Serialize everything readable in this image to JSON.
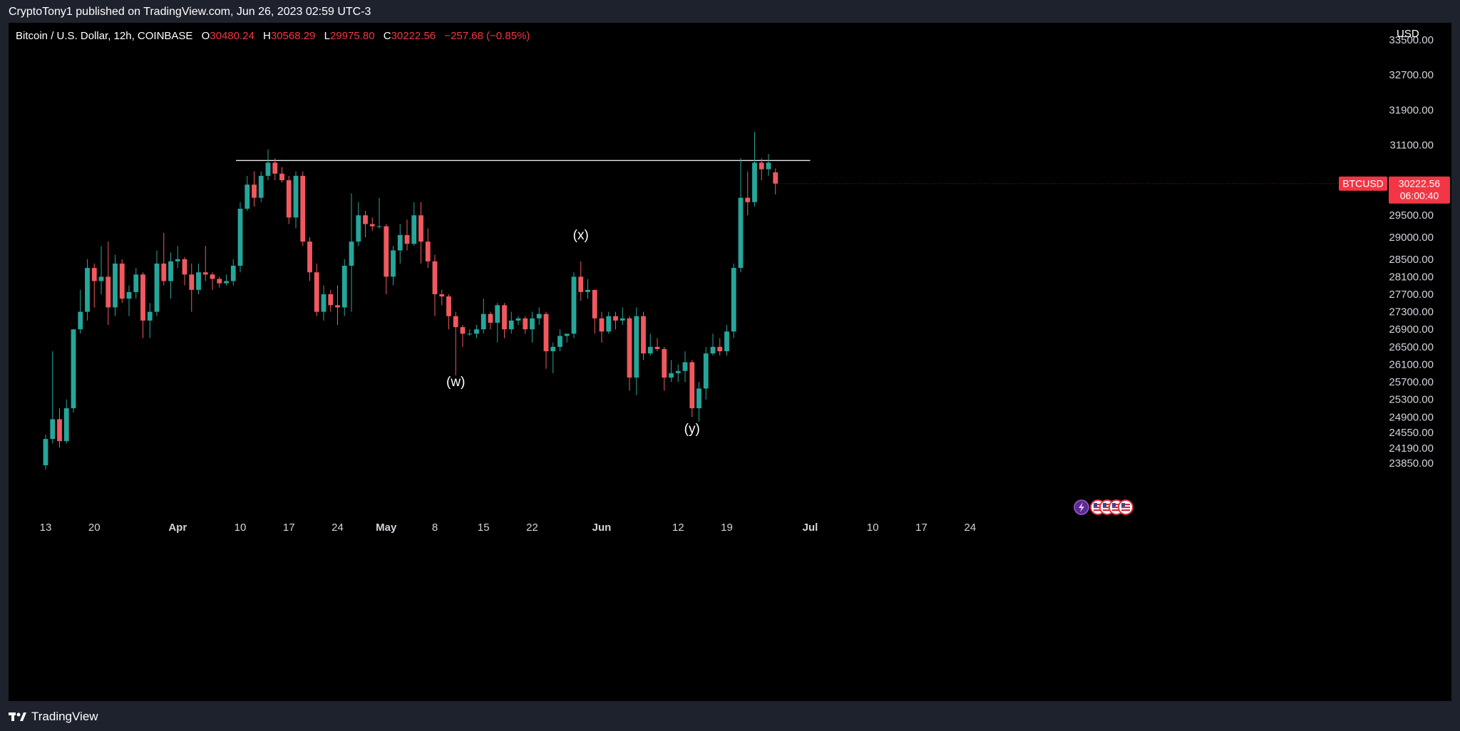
{
  "header": {
    "publish_text": "CryptoTony1 published on TradingView.com, Jun 26, 2023 02:59 UTC-3"
  },
  "legend": {
    "symbol": "Bitcoin / U.S. Dollar, 12h, COINBASE",
    "open_label": "O",
    "open": "30480.24",
    "high_label": "H",
    "high": "30568.29",
    "low_label": "L",
    "low": "29975.80",
    "close_label": "C",
    "close": "30222.56",
    "change": "−257.68 (−0.85%)"
  },
  "price_axis": {
    "currency": "USD"
  },
  "price_badge": {
    "ticker": "BTCUSD",
    "price": "30222.56",
    "countdown": "06:00:40"
  },
  "footer": {
    "brand": "TradingView"
  },
  "colors": {
    "up": "#26a69a",
    "down": "#f0595f",
    "background": "#000000",
    "axis_text": "#d1d4dc",
    "badge": "#f23645"
  },
  "chart_data": {
    "type": "candlestick",
    "title": "",
    "y_tick_labels": [
      33500,
      32700,
      31900,
      31100,
      29500,
      29000,
      28500,
      28100,
      27700,
      27300,
      26900,
      26500,
      26100,
      25700,
      25300,
      24900,
      24550,
      24190,
      23850
    ],
    "x_tick_labels": [
      {
        "date": "2023-03-13",
        "label": "13"
      },
      {
        "date": "2023-03-20",
        "label": "20"
      },
      {
        "date": "2023-04-01",
        "label": "Apr"
      },
      {
        "date": "2023-04-10",
        "label": "10"
      },
      {
        "date": "2023-04-17",
        "label": "17"
      },
      {
        "date": "2023-04-24",
        "label": "24"
      },
      {
        "date": "2023-05-01",
        "label": "May"
      },
      {
        "date": "2023-05-08",
        "label": "8"
      },
      {
        "date": "2023-05-15",
        "label": "15"
      },
      {
        "date": "2023-05-22",
        "label": "22"
      },
      {
        "date": "2023-06-01",
        "label": "Jun"
      },
      {
        "date": "2023-06-12",
        "label": "12"
      },
      {
        "date": "2023-06-19",
        "label": "19"
      },
      {
        "date": "2023-07-01",
        "label": "Jul"
      },
      {
        "date": "2023-07-10",
        "label": "10"
      },
      {
        "date": "2023-07-17",
        "label": "17"
      },
      {
        "date": "2023-07-24",
        "label": "24"
      }
    ],
    "horizontal_line": {
      "price": 30750,
      "from": "2023-04-10",
      "to": "2023-07-01"
    },
    "annotations": [
      {
        "text": "(w)",
        "date": "2023-05-11",
        "price": 25600
      },
      {
        "text": "(x)",
        "date": "2023-05-29",
        "price": 28950
      },
      {
        "text": "(y)",
        "date": "2023-06-14",
        "price": 24530
      }
    ],
    "series": [
      {
        "date": "2023-03-13",
        "o": 23800,
        "h": 24500,
        "l": 23700,
        "c": 24400
      },
      {
        "date": "2023-03-14",
        "o": 24400,
        "h": 26400,
        "l": 24300,
        "c": 24850
      },
      {
        "date": "2023-03-15",
        "o": 24850,
        "h": 25100,
        "l": 24200,
        "c": 24350
      },
      {
        "date": "2023-03-16",
        "o": 24350,
        "h": 25300,
        "l": 24300,
        "c": 25100
      },
      {
        "date": "2023-03-17",
        "o": 25100,
        "h": 26900,
        "l": 25000,
        "c": 26900
      },
      {
        "date": "2023-03-18",
        "o": 26900,
        "h": 27800,
        "l": 26800,
        "c": 27300
      },
      {
        "date": "2023-03-19",
        "o": 27300,
        "h": 28500,
        "l": 27100,
        "c": 28300
      },
      {
        "date": "2023-03-20",
        "o": 28300,
        "h": 28400,
        "l": 27400,
        "c": 28000
      },
      {
        "date": "2023-03-21",
        "o": 28000,
        "h": 28800,
        "l": 27700,
        "c": 28100
      },
      {
        "date": "2023-03-22",
        "o": 28100,
        "h": 28900,
        "l": 27000,
        "c": 27400
      },
      {
        "date": "2023-03-23",
        "o": 27400,
        "h": 28600,
        "l": 27200,
        "c": 28400
      },
      {
        "date": "2023-03-24",
        "o": 28400,
        "h": 28500,
        "l": 27500,
        "c": 27600
      },
      {
        "date": "2023-03-25",
        "o": 27600,
        "h": 27900,
        "l": 27200,
        "c": 27750
      },
      {
        "date": "2023-03-26",
        "o": 27750,
        "h": 28300,
        "l": 27600,
        "c": 28150
      },
      {
        "date": "2023-03-27",
        "o": 28150,
        "h": 28200,
        "l": 26700,
        "c": 27100
      },
      {
        "date": "2023-03-28",
        "o": 27100,
        "h": 27500,
        "l": 26700,
        "c": 27300
      },
      {
        "date": "2023-03-29",
        "o": 27300,
        "h": 28700,
        "l": 27200,
        "c": 28400
      },
      {
        "date": "2023-03-30",
        "o": 28400,
        "h": 29100,
        "l": 27900,
        "c": 28000
      },
      {
        "date": "2023-03-31",
        "o": 28000,
        "h": 28650,
        "l": 27600,
        "c": 28450
      },
      {
        "date": "2023-04-01",
        "o": 28450,
        "h": 28800,
        "l": 28300,
        "c": 28500
      },
      {
        "date": "2023-04-02",
        "o": 28500,
        "h": 28550,
        "l": 27900,
        "c": 28150
      },
      {
        "date": "2023-04-03",
        "o": 28150,
        "h": 28400,
        "l": 27300,
        "c": 27800
      },
      {
        "date": "2023-04-04",
        "o": 27800,
        "h": 28400,
        "l": 27700,
        "c": 28200
      },
      {
        "date": "2023-04-05",
        "o": 28200,
        "h": 28800,
        "l": 28000,
        "c": 28150
      },
      {
        "date": "2023-04-06",
        "o": 28150,
        "h": 28200,
        "l": 27800,
        "c": 28050
      },
      {
        "date": "2023-04-07",
        "o": 28050,
        "h": 28100,
        "l": 27850,
        "c": 27950
      },
      {
        "date": "2023-04-08",
        "o": 27950,
        "h": 28150,
        "l": 27900,
        "c": 28000
      },
      {
        "date": "2023-04-09",
        "o": 28000,
        "h": 28500,
        "l": 27900,
        "c": 28350
      },
      {
        "date": "2023-04-10",
        "o": 28350,
        "h": 29800,
        "l": 28200,
        "c": 29650
      },
      {
        "date": "2023-04-11",
        "o": 29650,
        "h": 30400,
        "l": 29600,
        "c": 30200
      },
      {
        "date": "2023-04-12",
        "o": 30200,
        "h": 30500,
        "l": 29700,
        "c": 29900
      },
      {
        "date": "2023-04-13",
        "o": 29900,
        "h": 30500,
        "l": 29800,
        "c": 30400
      },
      {
        "date": "2023-04-14",
        "o": 30400,
        "h": 31000,
        "l": 30300,
        "c": 30700
      },
      {
        "date": "2023-04-15",
        "o": 30700,
        "h": 30800,
        "l": 30300,
        "c": 30450
      },
      {
        "date": "2023-04-16",
        "o": 30450,
        "h": 30600,
        "l": 30250,
        "c": 30300
      },
      {
        "date": "2023-04-17",
        "o": 30300,
        "h": 30400,
        "l": 29300,
        "c": 29450
      },
      {
        "date": "2023-04-18",
        "o": 29450,
        "h": 30500,
        "l": 29200,
        "c": 30400
      },
      {
        "date": "2023-04-19",
        "o": 30400,
        "h": 30500,
        "l": 28800,
        "c": 28900
      },
      {
        "date": "2023-04-20",
        "o": 28900,
        "h": 29000,
        "l": 28000,
        "c": 28200
      },
      {
        "date": "2023-04-21",
        "o": 28200,
        "h": 28400,
        "l": 27200,
        "c": 27300
      },
      {
        "date": "2023-04-22",
        "o": 27300,
        "h": 27900,
        "l": 27100,
        "c": 27700
      },
      {
        "date": "2023-04-23",
        "o": 27700,
        "h": 27800,
        "l": 27300,
        "c": 27450
      },
      {
        "date": "2023-04-24",
        "o": 27450,
        "h": 27900,
        "l": 27000,
        "c": 27400
      },
      {
        "date": "2023-04-25",
        "o": 27400,
        "h": 28500,
        "l": 27200,
        "c": 28350
      },
      {
        "date": "2023-04-26",
        "o": 28350,
        "h": 30000,
        "l": 27300,
        "c": 28900
      },
      {
        "date": "2023-04-27",
        "o": 28900,
        "h": 29800,
        "l": 28800,
        "c": 29500
      },
      {
        "date": "2023-04-28",
        "o": 29500,
        "h": 29600,
        "l": 29000,
        "c": 29300
      },
      {
        "date": "2023-04-29",
        "o": 29300,
        "h": 29450,
        "l": 29150,
        "c": 29250
      },
      {
        "date": "2023-04-30",
        "o": 29250,
        "h": 29900,
        "l": 29200,
        "c": 29250
      },
      {
        "date": "2023-05-01",
        "o": 29250,
        "h": 29300,
        "l": 27700,
        "c": 28100
      },
      {
        "date": "2023-05-02",
        "o": 28100,
        "h": 28800,
        "l": 27900,
        "c": 28700
      },
      {
        "date": "2023-05-03",
        "o": 28700,
        "h": 29300,
        "l": 28400,
        "c": 29050
      },
      {
        "date": "2023-05-04",
        "o": 29050,
        "h": 29400,
        "l": 28700,
        "c": 28850
      },
      {
        "date": "2023-05-05",
        "o": 28850,
        "h": 29800,
        "l": 28800,
        "c": 29500
      },
      {
        "date": "2023-05-06",
        "o": 29500,
        "h": 29800,
        "l": 28400,
        "c": 28900
      },
      {
        "date": "2023-05-07",
        "o": 28900,
        "h": 29200,
        "l": 28300,
        "c": 28450
      },
      {
        "date": "2023-05-08",
        "o": 28450,
        "h": 28600,
        "l": 27200,
        "c": 27700
      },
      {
        "date": "2023-05-09",
        "o": 27700,
        "h": 27800,
        "l": 27450,
        "c": 27650
      },
      {
        "date": "2023-05-10",
        "o": 27650,
        "h": 27700,
        "l": 26900,
        "c": 27200
      },
      {
        "date": "2023-05-11",
        "o": 27200,
        "h": 27300,
        "l": 25850,
        "c": 26950
      },
      {
        "date": "2023-05-12",
        "o": 26950,
        "h": 27000,
        "l": 26500,
        "c": 26800
      },
      {
        "date": "2023-05-13",
        "o": 26800,
        "h": 26900,
        "l": 26750,
        "c": 26800
      },
      {
        "date": "2023-05-14",
        "o": 26800,
        "h": 27000,
        "l": 26700,
        "c": 26900
      },
      {
        "date": "2023-05-15",
        "o": 26900,
        "h": 27600,
        "l": 26800,
        "c": 27250
      },
      {
        "date": "2023-05-16",
        "o": 27250,
        "h": 27300,
        "l": 26900,
        "c": 27050
      },
      {
        "date": "2023-05-17",
        "o": 27050,
        "h": 27500,
        "l": 26600,
        "c": 27450
      },
      {
        "date": "2023-05-18",
        "o": 27450,
        "h": 27500,
        "l": 26700,
        "c": 26900
      },
      {
        "date": "2023-05-19",
        "o": 26900,
        "h": 27300,
        "l": 26800,
        "c": 27100
      },
      {
        "date": "2023-05-20",
        "o": 27100,
        "h": 27200,
        "l": 27000,
        "c": 27150
      },
      {
        "date": "2023-05-21",
        "o": 27150,
        "h": 27200,
        "l": 26800,
        "c": 26900
      },
      {
        "date": "2023-05-22",
        "o": 26900,
        "h": 27300,
        "l": 26600,
        "c": 27150
      },
      {
        "date": "2023-05-23",
        "o": 27150,
        "h": 27400,
        "l": 27000,
        "c": 27250
      },
      {
        "date": "2023-05-24",
        "o": 27250,
        "h": 27300,
        "l": 26000,
        "c": 26400
      },
      {
        "date": "2023-05-25",
        "o": 26400,
        "h": 26600,
        "l": 25900,
        "c": 26500
      },
      {
        "date": "2023-05-26",
        "o": 26500,
        "h": 26900,
        "l": 26400,
        "c": 26750
      },
      {
        "date": "2023-05-27",
        "o": 26750,
        "h": 26800,
        "l": 26600,
        "c": 26800
      },
      {
        "date": "2023-05-28",
        "o": 26800,
        "h": 28200,
        "l": 26700,
        "c": 28100
      },
      {
        "date": "2023-05-29",
        "o": 28100,
        "h": 28450,
        "l": 27550,
        "c": 27750
      },
      {
        "date": "2023-05-30",
        "o": 27750,
        "h": 28050,
        "l": 27600,
        "c": 27800
      },
      {
        "date": "2023-05-31",
        "o": 27800,
        "h": 27800,
        "l": 26800,
        "c": 27150
      },
      {
        "date": "2023-06-01",
        "o": 27150,
        "h": 27300,
        "l": 26600,
        "c": 26850
      },
      {
        "date": "2023-06-02",
        "o": 26850,
        "h": 27300,
        "l": 26800,
        "c": 27200
      },
      {
        "date": "2023-06-03",
        "o": 27200,
        "h": 27300,
        "l": 26900,
        "c": 27100
      },
      {
        "date": "2023-06-04",
        "o": 27100,
        "h": 27400,
        "l": 27000,
        "c": 27150
      },
      {
        "date": "2023-06-05",
        "o": 27150,
        "h": 27200,
        "l": 25500,
        "c": 25800
      },
      {
        "date": "2023-06-06",
        "o": 25800,
        "h": 27400,
        "l": 25400,
        "c": 27200
      },
      {
        "date": "2023-06-07",
        "o": 27200,
        "h": 27300,
        "l": 26200,
        "c": 26350
      },
      {
        "date": "2023-06-08",
        "o": 26350,
        "h": 26800,
        "l": 26300,
        "c": 26500
      },
      {
        "date": "2023-06-09",
        "o": 26500,
        "h": 26700,
        "l": 26400,
        "c": 26450
      },
      {
        "date": "2023-06-10",
        "o": 26450,
        "h": 26500,
        "l": 25500,
        "c": 25800
      },
      {
        "date": "2023-06-11",
        "o": 25800,
        "h": 26200,
        "l": 25700,
        "c": 25900
      },
      {
        "date": "2023-06-12",
        "o": 25900,
        "h": 26100,
        "l": 25700,
        "c": 25950
      },
      {
        "date": "2023-06-13",
        "o": 25950,
        "h": 26400,
        "l": 25700,
        "c": 26150
      },
      {
        "date": "2023-06-14",
        "o": 26150,
        "h": 26200,
        "l": 24900,
        "c": 25100
      },
      {
        "date": "2023-06-15",
        "o": 25100,
        "h": 25700,
        "l": 24800,
        "c": 25550
      },
      {
        "date": "2023-06-16",
        "o": 25550,
        "h": 26500,
        "l": 25300,
        "c": 26350
      },
      {
        "date": "2023-06-17",
        "o": 26350,
        "h": 26800,
        "l": 26300,
        "c": 26500
      },
      {
        "date": "2023-06-18",
        "o": 26500,
        "h": 26700,
        "l": 26300,
        "c": 26400
      },
      {
        "date": "2023-06-19",
        "o": 26400,
        "h": 27000,
        "l": 26300,
        "c": 26850
      },
      {
        "date": "2023-06-20",
        "o": 26850,
        "h": 28400,
        "l": 26700,
        "c": 28300
      },
      {
        "date": "2023-06-21",
        "o": 28300,
        "h": 30800,
        "l": 28200,
        "c": 29900
      },
      {
        "date": "2023-06-22",
        "o": 29900,
        "h": 30500,
        "l": 29500,
        "c": 29800
      },
      {
        "date": "2023-06-23",
        "o": 29800,
        "h": 31400,
        "l": 29700,
        "c": 30700
      },
      {
        "date": "2023-06-24",
        "o": 30700,
        "h": 30800,
        "l": 30300,
        "c": 30550
      },
      {
        "date": "2023-06-25",
        "o": 30550,
        "h": 30900,
        "l": 30400,
        "c": 30700
      },
      {
        "date": "2023-06-26",
        "o": 30480.24,
        "h": 30568.29,
        "l": 29975.8,
        "c": 30222.56
      }
    ]
  }
}
